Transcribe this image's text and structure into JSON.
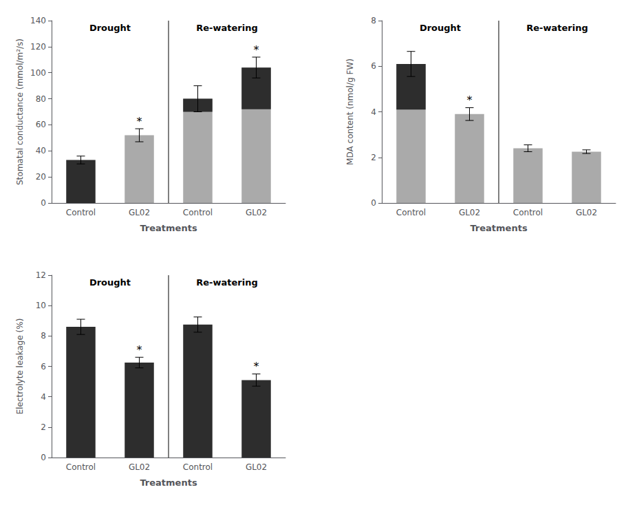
{
  "chart_data": [
    {
      "type": "bar",
      "categories": [
        "Control",
        "GL02",
        "Control",
        "GL02"
      ],
      "values": [
        33,
        52,
        80,
        104
      ],
      "errors": [
        3,
        5,
        10,
        8
      ],
      "colors": [
        "#2d2d2d",
        "#aaaaaa",
        "#aaaaaa",
        "#aaaaaa"
      ],
      "dark_cap": {
        "color": "#2d2d2d",
        "values": [
          null,
          null,
          10,
          32
        ]
      },
      "annotations": [
        null,
        "*",
        null,
        "*"
      ],
      "sections": [
        "Drought",
        "Drought",
        "Re-watering",
        "Re-watering"
      ],
      "xlabel": "Treatments",
      "ylabel": "Stomatal conductance (mmol/m²/s)",
      "ylim": [
        0,
        140
      ],
      "yticks": [
        0,
        20,
        40,
        60,
        80,
        100,
        120,
        140
      ],
      "grid": false
    },
    {
      "type": "bar",
      "categories": [
        "Control",
        "GL02",
        "Control",
        "GL02"
      ],
      "values": [
        6.1,
        3.9,
        2.4,
        2.25
      ],
      "errors": [
        0.55,
        0.28,
        0.15,
        0.08
      ],
      "colors": [
        "#aaaaaa",
        "#aaaaaa",
        "#aaaaaa",
        "#aaaaaa"
      ],
      "dark_cap": {
        "color": "#2d2d2d",
        "values": [
          2.0,
          null,
          null,
          null
        ]
      },
      "annotations": [
        null,
        "*",
        null,
        null
      ],
      "sections": [
        "Drought",
        "Drought",
        "Re-watering",
        "Re-watering"
      ],
      "xlabel": "Treatments",
      "ylabel": "MDA content (nmol/g FW)",
      "ylim": [
        0,
        8
      ],
      "yticks": [
        0,
        2,
        4,
        6,
        8
      ],
      "grid": false
    },
    {
      "type": "bar",
      "categories": [
        "Control",
        "GL02",
        "Control",
        "GL02"
      ],
      "values": [
        8.6,
        6.25,
        8.75,
        5.1
      ],
      "errors": [
        0.5,
        0.35,
        0.5,
        0.4
      ],
      "colors": [
        "#2d2d2d",
        "#2d2d2d",
        "#2d2d2d",
        "#2d2d2d"
      ],
      "annotations": [
        null,
        "*",
        null,
        "*"
      ],
      "sections": [
        "Drought",
        "Drought",
        "Re-watering",
        "Re-watering"
      ],
      "xlabel": "Treatments",
      "ylabel": "Electrolyte leakage (%)",
      "ylim": [
        0,
        12
      ],
      "yticks": [
        0,
        2,
        4,
        6,
        8,
        10,
        12
      ],
      "grid": false
    }
  ]
}
